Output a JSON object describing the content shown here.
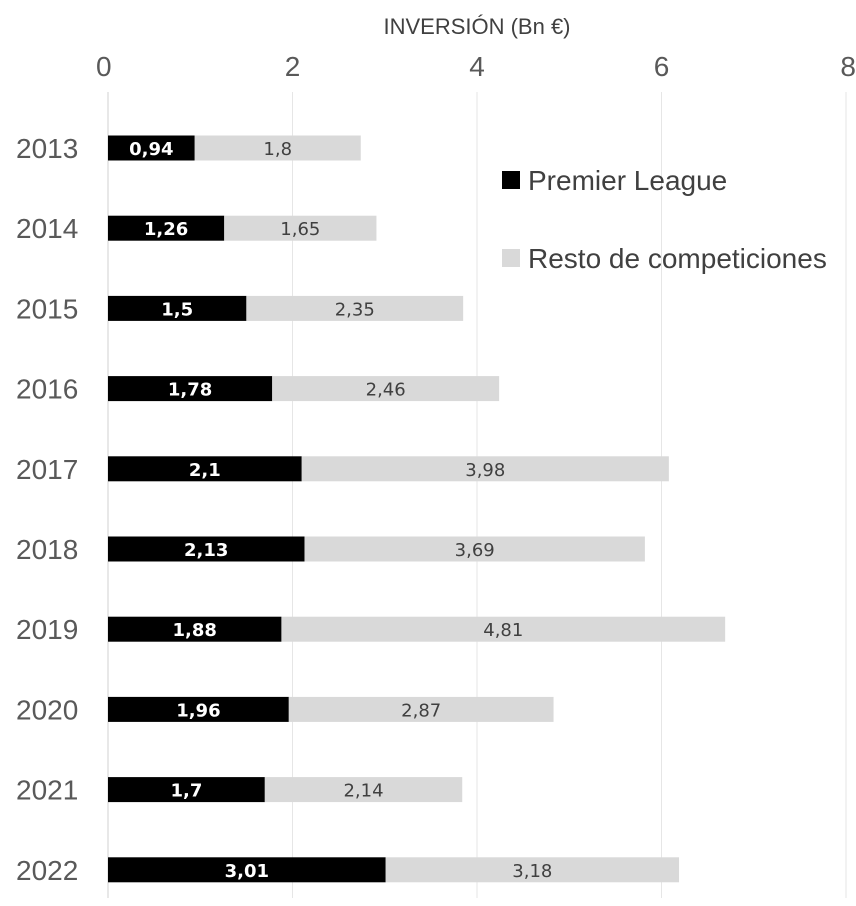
{
  "chart_data": {
    "type": "bar",
    "orientation": "horizontal",
    "stacked": true,
    "title": "",
    "xlabel": "INVERSIÓN (Bn €)",
    "ylabel": "",
    "xlim": [
      0,
      8
    ],
    "x_ticks": [
      "0",
      "2",
      "4",
      "6",
      "8"
    ],
    "x_axis_position": "top",
    "grid": true,
    "legend_position": "top-right",
    "categories": [
      "2013",
      "2014",
      "2015",
      "2016",
      "2017",
      "2018",
      "2019",
      "2020",
      "2021",
      "2022"
    ],
    "series": [
      {
        "name": "Premier League",
        "color": "#000000",
        "values": [
          0.94,
          1.26,
          1.5,
          1.78,
          2.1,
          2.13,
          1.88,
          1.96,
          1.7,
          3.01
        ],
        "labels": [
          "0,94",
          "1,26",
          "1,5",
          "1,78",
          "2,1",
          "2,13",
          "1,88",
          "1,96",
          "1,7",
          "3,01"
        ]
      },
      {
        "name": "Resto de competiciones",
        "color": "#d9d9d9",
        "values": [
          1.8,
          1.65,
          2.35,
          2.46,
          3.98,
          3.69,
          4.81,
          2.87,
          2.14,
          3.18
        ],
        "labels": [
          "1,8",
          "1,65",
          "2,35",
          "2,46",
          "3,98",
          "3,69",
          "4,81",
          "2,87",
          "2,14",
          "3,18"
        ]
      }
    ]
  }
}
